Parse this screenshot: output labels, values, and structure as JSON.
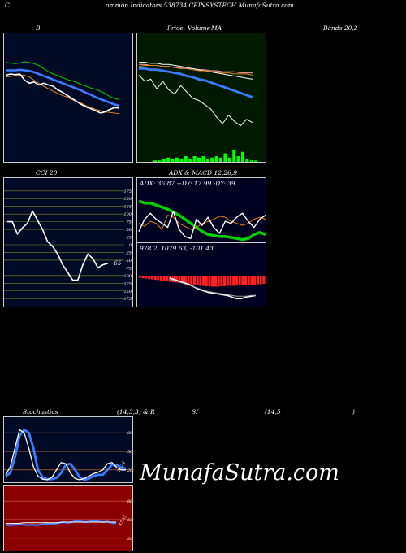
{
  "header": {
    "title_c": "C",
    "title_rest": "ommon  Indicators 538734  CEINSYSTECH MunafaSutra.com"
  },
  "watermark": "MunafaSutra.com",
  "colors": {
    "bg": "#000000",
    "navy": "#000a24",
    "green_panel": "#001a00",
    "adx_panel": "#000020",
    "rsi_panel": "#8b0000",
    "white_line": "#ffffff",
    "blue_line": "#3c7dff",
    "green_line": "#00d000",
    "orange_line": "#e08020",
    "volume_bar": "#00ff00",
    "macd_bar": "#ff2020",
    "grid_olive": "#8a8a20"
  },
  "chart_data": [
    {
      "type": "line",
      "id": "bollinger",
      "labels": {
        "left": "B",
        "right": "Bands 20,2"
      },
      "series": [
        {
          "color": "green",
          "values": [
            79,
            78,
            77,
            78,
            80,
            79,
            77,
            74,
            69,
            64,
            60,
            57,
            54,
            51,
            49,
            46,
            43,
            40,
            37,
            35,
            32,
            28,
            23,
            20,
            18
          ]
        },
        {
          "color": "blue",
          "values": [
            66,
            66,
            66,
            67,
            66,
            65,
            63,
            60,
            57,
            54,
            51,
            48,
            45,
            42,
            39,
            36,
            33,
            29,
            26,
            22,
            19,
            16,
            13,
            10,
            8
          ]
        },
        {
          "color": "orange",
          "values": [
            55,
            56,
            57,
            58,
            58,
            55,
            50,
            45,
            40,
            36,
            32,
            28,
            25,
            22,
            18,
            15,
            12,
            8,
            5,
            2,
            0,
            -2,
            -3,
            -4,
            -5
          ]
        },
        {
          "color": "white",
          "values": [
            58,
            60,
            59,
            60,
            50,
            45,
            47,
            42,
            45,
            42,
            40,
            34,
            30,
            25,
            20,
            15,
            10,
            6,
            3,
            0,
            -4,
            -2,
            2,
            5,
            4
          ]
        }
      ]
    },
    {
      "type": "line",
      "id": "price-volume-ma",
      "labels": {
        "price": "Price,",
        "volume": "Volume",
        "ma": "MA"
      },
      "series": [
        {
          "color": "pink",
          "values": [
            86,
            86,
            85,
            85,
            84,
            84,
            83,
            83,
            82,
            82,
            81,
            81,
            80,
            80,
            79,
            79,
            79,
            78,
            78,
            78
          ]
        },
        {
          "color": "white",
          "values": [
            88,
            88,
            87,
            87,
            86,
            86,
            85,
            84,
            83,
            82,
            81,
            80,
            79,
            78,
            77,
            76,
            75,
            74,
            73,
            72
          ]
        },
        {
          "color": "orange",
          "values": [
            84,
            85,
            85,
            85,
            84,
            84,
            83,
            82,
            82,
            81,
            80,
            80,
            79,
            79,
            78,
            78,
            77,
            77,
            77,
            76
          ]
        },
        {
          "color": "blue",
          "values": [
            82,
            82,
            81,
            81,
            80,
            79,
            78,
            77,
            75,
            74,
            72,
            71,
            69,
            67,
            65,
            63,
            61,
            59,
            57,
            55
          ]
        },
        {
          "color": "white",
          "values": [
            76,
            70,
            72,
            63,
            70,
            62,
            58,
            66,
            60,
            54,
            52,
            48,
            44,
            36,
            30,
            38,
            32,
            28,
            34,
            31
          ]
        }
      ],
      "volume": [
        1,
        1,
        2,
        3,
        2,
        3,
        2,
        4,
        2,
        4,
        3,
        4,
        2,
        3,
        4,
        3,
        6,
        3,
        8,
        4,
        7,
        2,
        1,
        1
      ]
    },
    {
      "type": "line",
      "id": "cci",
      "labels": {
        "title": "CCI 20",
        "last": "-65"
      },
      "yticks": [
        175,
        150,
        125,
        100,
        75,
        50,
        25,
        0,
        -25,
        -50,
        -75,
        -100,
        -125,
        -150,
        -175
      ],
      "ylim": [
        -185,
        185
      ],
      "series": [
        {
          "color": "white",
          "values": [
            75,
            75,
            35,
            55,
            70,
            110,
            80,
            50,
            10,
            -5,
            -30,
            -65,
            -90,
            -115,
            -115,
            -65,
            -30,
            -45,
            -75,
            -65,
            -60
          ]
        }
      ]
    },
    {
      "type": "line",
      "id": "adx",
      "labels": {
        "title": "ADX  & MACD 12,26,9",
        "readout": "ADX: 36.87  +DY: 17.99 -DY: 39"
      },
      "series": [
        {
          "color": "green",
          "values": [
            40,
            38,
            38,
            36,
            34,
            32,
            29,
            26,
            22,
            18,
            14,
            10,
            7,
            6,
            5,
            5,
            4,
            3,
            2,
            3,
            7,
            9,
            7
          ]
        },
        {
          "color": "orange",
          "values": [
            18,
            15,
            20,
            18,
            12,
            26,
            24,
            18,
            15,
            12,
            14,
            18,
            20,
            22,
            25,
            24,
            20,
            18,
            16,
            18,
            22,
            24,
            22
          ]
        },
        {
          "color": "white",
          "values": [
            10,
            22,
            28,
            22,
            18,
            14,
            30,
            12,
            5,
            3,
            22,
            16,
            24,
            14,
            8,
            20,
            18,
            24,
            28,
            20,
            14,
            22,
            26
          ]
        }
      ]
    },
    {
      "type": "bar",
      "id": "macd",
      "labels": {
        "readout": "978.2,  1079.63,  -101.43"
      },
      "histogram": [
        -5,
        -6,
        -7,
        -8,
        -9,
        -10,
        -11,
        -12,
        -13,
        -14,
        -15,
        -16,
        -17,
        -18,
        -19,
        -20,
        -21,
        -22,
        -23,
        -24,
        -25,
        -25,
        -26,
        -26,
        -27,
        -27,
        -27,
        -26,
        -26,
        -25,
        -25,
        -25,
        -24,
        -24,
        -24,
        -23,
        -23,
        -22,
        -22,
        -21,
        -21,
        -20
      ],
      "series": [
        {
          "color": "white",
          "values": [
            2,
            0,
            -2,
            -4,
            -6,
            -9,
            -12,
            -14,
            -16,
            -17,
            -18,
            -19,
            -20,
            -22,
            -24,
            -24,
            -22,
            -21,
            -20
          ]
        },
        {
          "color": "gray",
          "values": [
            0,
            -1,
            -3,
            -5,
            -7,
            -9,
            -11,
            -13,
            -15,
            -16,
            -17,
            -18,
            -19,
            -20,
            -21,
            -21,
            -21,
            -20,
            -20
          ]
        }
      ]
    },
    {
      "type": "line",
      "id": "stochastics",
      "labels": {
        "title_left": "Stochastics",
        "title_mid": "(14,3,3) & R",
        "title_si": "SI",
        "title_params": "(14,5",
        "title_close": ")",
        "value": "25,24"
      },
      "yticks": [
        80,
        50,
        20
      ],
      "ylim": [
        0,
        100
      ],
      "series": [
        {
          "color": "blue",
          "values": [
            10,
            15,
            40,
            75,
            85,
            80,
            55,
            20,
            8,
            5,
            5,
            7,
            15,
            28,
            30,
            20,
            8,
            4,
            6,
            10,
            12,
            12,
            20,
            28,
            28,
            24,
            22
          ]
        },
        {
          "color": "white",
          "values": [
            12,
            25,
            55,
            85,
            80,
            55,
            25,
            10,
            5,
            4,
            8,
            20,
            32,
            30,
            15,
            6,
            4,
            6,
            10,
            14,
            16,
            20,
            30,
            32,
            24,
            20,
            20
          ]
        }
      ]
    },
    {
      "type": "line",
      "id": "rsi",
      "labels": {
        "value": "47.55"
      },
      "yticks": [
        80,
        50,
        20
      ],
      "ylim": [
        0,
        100
      ],
      "series": [
        {
          "color": "blue",
          "values": [
            42,
            41,
            42,
            43,
            42,
            41,
            42,
            41,
            42,
            43,
            44,
            43,
            45,
            46,
            45,
            46,
            48,
            47,
            46,
            47,
            48,
            47,
            46,
            47,
            45,
            44
          ]
        },
        {
          "color": "white",
          "values": [
            44,
            44,
            44,
            44,
            45,
            45,
            45,
            45,
            45,
            45,
            45,
            45,
            45,
            46,
            46,
            46,
            46,
            46,
            46,
            46,
            46,
            46,
            46,
            46,
            46,
            46
          ]
        }
      ]
    }
  ]
}
